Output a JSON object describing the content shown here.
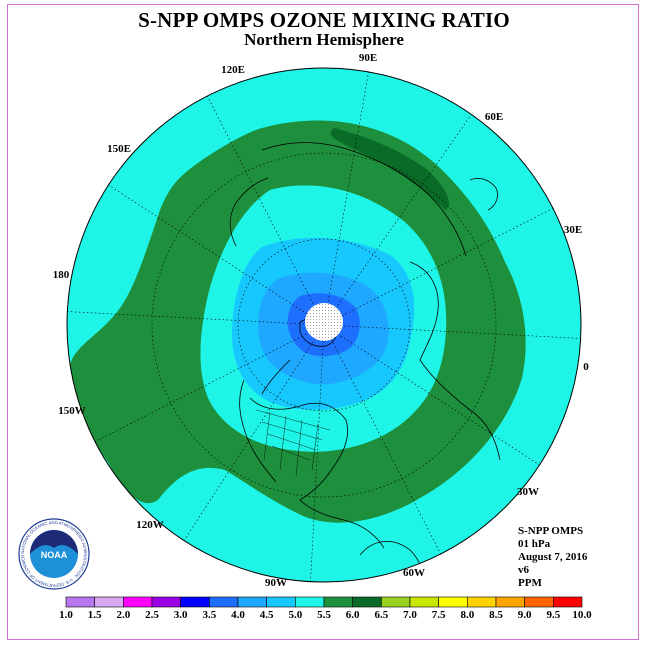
{
  "title": "S-NPP OMPS OZONE MIXING RATIO",
  "subtitle": "Northern Hemisphere",
  "info": {
    "instrument": "S-NPP OMPS",
    "level": "01 hPa",
    "date": "August 7, 2016",
    "version": "v6",
    "units": "PPM"
  },
  "longitude_labels": [
    "90E",
    "60E",
    "30E",
    "0",
    "30W",
    "60W",
    "90W",
    "120W",
    "150W",
    "180",
    "150E",
    "120E"
  ],
  "logo": {
    "text": "NOAA",
    "ring_text": "NATIONAL OCEANIC AND ATMOSPHERIC ADMINISTRATION · U.S. DEPARTMENT OF COMMERCE"
  },
  "colorbar": {
    "ticks": [
      "1.0",
      "1.5",
      "2.0",
      "2.5",
      "3.0",
      "3.5",
      "4.0",
      "4.5",
      "5.0",
      "5.5",
      "6.0",
      "6.5",
      "7.0",
      "7.5",
      "8.0",
      "8.5",
      "9.0",
      "9.5",
      "10.0"
    ],
    "colors": [
      "#b877ee",
      "#d8a8f0",
      "#ff00ff",
      "#9a00e6",
      "#0000ff",
      "#1f6fff",
      "#1ea8ff",
      "#17c8ff",
      "#1ef5e6",
      "#1e8f3c",
      "#0a6a28",
      "#96d21e",
      "#c8e600",
      "#ffff00",
      "#ffd200",
      "#ffa500",
      "#ff6400",
      "#ff0000",
      "#8b5a3c"
    ]
  },
  "chart_data": {
    "type": "heatmap",
    "projection": "north polar stereographic",
    "variable": "ozone mixing ratio",
    "units": "PPM",
    "pressure_level": "01 hPa",
    "date": "August 7, 2016",
    "color_scale_range": [
      1.0,
      10.0
    ],
    "color_scale_step": 0.5,
    "pattern": [
      {
        "region": "pole (no data)",
        "range": null
      },
      {
        "region": "near pole",
        "range": [
          3.5,
          4.0
        ]
      },
      {
        "region": "high latitudes",
        "range": [
          4.0,
          4.5
        ]
      },
      {
        "region": "mid-high latitudes",
        "range": [
          4.5,
          5.0
        ]
      },
      {
        "region": "mid latitudes",
        "range": [
          5.0,
          5.5
        ]
      },
      {
        "region": "subtropics",
        "range": [
          4.5,
          5.0
        ]
      }
    ]
  },
  "colors": {
    "frame": "#d070d0",
    "outer_ring": "#1ef5e6",
    "green_band": "#1e8f3c",
    "dark_green": "#0a6a28",
    "level_45": "#17c8ff",
    "level_40": "#1ea8ff",
    "level_35": "#1f6fff"
  }
}
